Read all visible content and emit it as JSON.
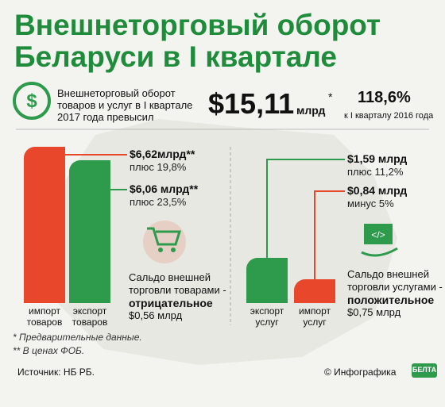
{
  "title": [
    "Внешнеторговый оборот",
    "Беларуси в I квартале"
  ],
  "summary": {
    "text": "Внешнеторговый оборот товаров и услуг в I квартале 2017 года превысил",
    "amount": "$15,11",
    "unit": "млрд",
    "mark": "*",
    "growth": "118,6%",
    "growth_note": "к I кварталу 2016 года"
  },
  "chart_data": [
    {
      "type": "bar",
      "categories": [
        "импорт товаров",
        "экспорт товаров"
      ],
      "values": [
        6.62,
        6.06
      ],
      "value_labels": [
        "$6,62млрд**",
        "$6,06 млрд**"
      ],
      "changes": [
        "плюс 19,8%",
        "плюс 23,5%"
      ],
      "colors": [
        "#e8472c",
        "#2e9a4c"
      ],
      "balance": {
        "label": "Сальдо внешней торговли товарами -",
        "sign": "отрицательное",
        "value": "$0,56 млрд"
      }
    },
    {
      "type": "bar",
      "categories": [
        "экспорт услуг",
        "импорт услуг"
      ],
      "values": [
        1.59,
        0.84
      ],
      "value_labels": [
        "$1,59 млрд",
        "$0,84 млрд"
      ],
      "changes": [
        "плюс 11,2%",
        "минус 5%"
      ],
      "colors": [
        "#2e9a4c",
        "#e8472c"
      ],
      "balance": {
        "label": "Сальдо внешней торговли услугами -",
        "sign": "положительное",
        "value": "$0,75 млрд"
      }
    }
  ],
  "footnotes": [
    "* Предварительные данные.",
    "** В ценах ФОБ."
  ],
  "source": "Источник: НБ РБ.",
  "credit": "© Инфографика",
  "logo": "БЕЛТА"
}
